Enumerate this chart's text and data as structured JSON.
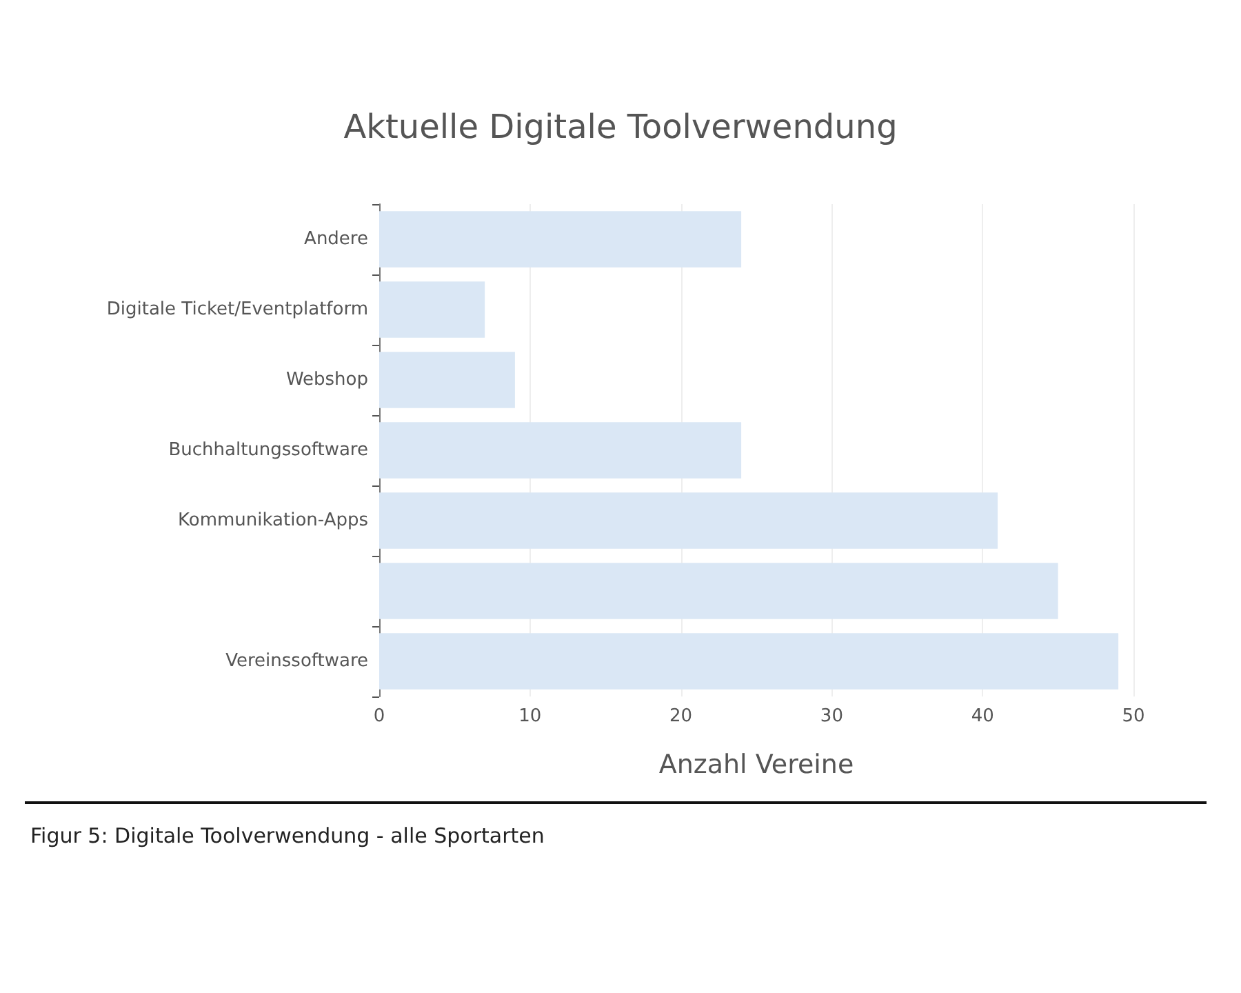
{
  "chart_data": {
    "type": "bar",
    "orientation": "horizontal",
    "title": "Aktuelle Digitale Toolverwendung",
    "xlabel": "Anzahl Vereine",
    "categories": [
      "Andere",
      "Digitale Ticket/Eventplatform",
      "Webshop",
      "Buchhaltungssoftware",
      "Kommunikation-Apps",
      null,
      "Vereinssoftware"
    ],
    "values": [
      24,
      7,
      9,
      24,
      41,
      45,
      49
    ],
    "color": "#dae7f5",
    "xlim": [
      0,
      50
    ],
    "xticks": [
      0,
      10,
      20,
      30,
      40,
      50
    ],
    "grid": "x",
    "annotations": [
      "Figur 5: Digitale Toolverwendung - alle Sportarten"
    ]
  }
}
